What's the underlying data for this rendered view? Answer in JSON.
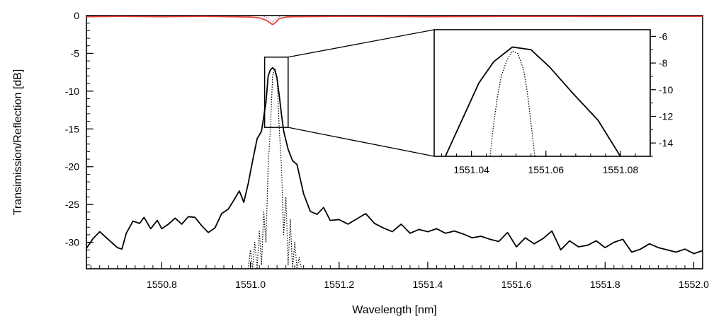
{
  "chart_data": [
    {
      "type": "line",
      "xlabel": "Wavelength [nm]",
      "ylabel": "Transimission/Reflection [dB]",
      "xlim": [
        1550.63,
        1552.02
      ],
      "ylim": [
        -33.5,
        0
      ],
      "xticks": [
        1550.8,
        1551.0,
        1551.2,
        1551.4,
        1551.6,
        1551.8,
        1552.0
      ],
      "xtick_labels": [
        "1550.8",
        "1551.0",
        "1551.2",
        "1551.4",
        "1551.6",
        "1551.8",
        "1552.0"
      ],
      "yticks": [
        0,
        -5,
        -10,
        -15,
        -20,
        -25,
        -30
      ],
      "ytick_labels": [
        "0",
        "-5",
        "-10",
        "-15",
        "-20",
        "-25",
        "-30"
      ],
      "grid": false,
      "series": [
        {
          "style": "solid-black",
          "color": "#000000",
          "x": [
            1550.63,
            1550.645,
            1550.66,
            1550.675,
            1550.69,
            1550.7,
            1550.71,
            1550.72,
            1550.735,
            1550.75,
            1550.76,
            1550.775,
            1550.79,
            1550.8,
            1550.815,
            1550.83,
            1550.845,
            1550.86,
            1550.875,
            1550.89,
            1550.905,
            1550.92,
            1550.935,
            1550.95,
            1550.965,
            1550.975,
            1550.985,
            1550.995,
            1551.005,
            1551.015,
            1551.025,
            1551.035,
            1551.04,
            1551.045,
            1551.05,
            1551.055,
            1551.06,
            1551.065,
            1551.07,
            1551.075,
            1551.085,
            1551.095,
            1551.105,
            1551.12,
            1551.135,
            1551.15,
            1551.165,
            1551.18,
            1551.2,
            1551.22,
            1551.24,
            1551.26,
            1551.28,
            1551.3,
            1551.32,
            1551.34,
            1551.36,
            1551.38,
            1551.4,
            1551.42,
            1551.44,
            1551.46,
            1551.48,
            1551.5,
            1551.52,
            1551.54,
            1551.56,
            1551.58,
            1551.6,
            1551.62,
            1551.64,
            1551.66,
            1551.68,
            1551.7,
            1551.72,
            1551.74,
            1551.76,
            1551.78,
            1551.8,
            1551.82,
            1551.84,
            1551.86,
            1551.88,
            1551.9,
            1551.92,
            1551.94,
            1551.96,
            1551.98,
            1552.0,
            1552.02
          ],
          "y": [
            -30.8,
            -29.5,
            -28.6,
            -29.4,
            -30.2,
            -30.7,
            -30.9,
            -28.8,
            -27.2,
            -27.5,
            -26.7,
            -28.2,
            -27.1,
            -28.2,
            -27.6,
            -26.8,
            -27.6,
            -26.6,
            -26.7,
            -27.8,
            -28.7,
            -28.1,
            -26.2,
            -25.6,
            -24.2,
            -23.2,
            -24.7,
            -22.2,
            -19.2,
            -16.3,
            -15.3,
            -11.5,
            -8.0,
            -7.2,
            -6.9,
            -7.2,
            -8.3,
            -10.6,
            -13.1,
            -15.3,
            -17.7,
            -19.2,
            -19.7,
            -23.6,
            -25.9,
            -26.3,
            -25.4,
            -27.1,
            -27.0,
            -27.6,
            -26.9,
            -26.2,
            -27.5,
            -28.1,
            -28.6,
            -27.6,
            -28.8,
            -28.3,
            -28.6,
            -28.2,
            -28.8,
            -28.5,
            -28.9,
            -29.4,
            -29.2,
            -29.6,
            -29.9,
            -28.7,
            -30.6,
            -29.4,
            -30.2,
            -29.5,
            -28.5,
            -31.0,
            -29.8,
            -30.6,
            -30.4,
            -29.8,
            -30.7,
            -30.0,
            -29.6,
            -31.3,
            -30.9,
            -30.2,
            -30.7,
            -31.0,
            -31.3,
            -30.9,
            -31.5,
            -31.1
          ]
        },
        {
          "style": "dotted-black",
          "color": "#000000",
          "x": [
            1550.995,
            1551.0,
            1551.005,
            1551.01,
            1551.015,
            1551.02,
            1551.025,
            1551.03,
            1551.035,
            1551.04,
            1551.045,
            1551.05,
            1551.055,
            1551.06,
            1551.065,
            1551.07,
            1551.075,
            1551.08,
            1551.085,
            1551.09,
            1551.095,
            1551.1,
            1551.105,
            1551.11,
            1551.115
          ],
          "y": [
            -33.5,
            -31.0,
            -33.5,
            -30.0,
            -33.5,
            -28.5,
            -33.0,
            -26.0,
            -30.0,
            -20.0,
            -15.0,
            -8.0,
            -7.0,
            -8.0,
            -15.0,
            -20.0,
            -29.0,
            -24.0,
            -33.0,
            -27.0,
            -33.5,
            -30.0,
            -33.5,
            -32.0,
            -33.5
          ]
        },
        {
          "style": "solid-red",
          "color": "#e8413a",
          "x": [
            1550.63,
            1550.7,
            1550.8,
            1550.9,
            1550.95,
            1551.0,
            1551.02,
            1551.035,
            1551.045,
            1551.05,
            1551.055,
            1551.06,
            1551.065,
            1551.08,
            1551.1,
            1551.2,
            1551.4,
            1551.6,
            1551.8,
            1552.02
          ],
          "y": [
            -0.15,
            -0.1,
            -0.15,
            -0.1,
            -0.15,
            -0.2,
            -0.3,
            -0.6,
            -1.0,
            -1.2,
            -1.0,
            -0.7,
            -0.4,
            -0.2,
            -0.15,
            -0.1,
            -0.15,
            -0.1,
            -0.12,
            -0.1
          ]
        },
        {
          "style": "dotted-gray",
          "color": "#8a8a8a",
          "x": [
            1551.03,
            1551.04,
            1551.045,
            1551.05,
            1551.055,
            1551.06,
            1551.065,
            1551.07
          ],
          "y": [
            -0.1,
            -0.3,
            -0.6,
            -0.9,
            -0.6,
            -0.3,
            -0.15,
            -0.1
          ]
        }
      ],
      "highlight_box": {
        "x": [
          1551.032,
          1551.085
        ],
        "y": [
          -14.8,
          -5.5
        ]
      }
    },
    {
      "type": "line",
      "role": "inset-zoom",
      "xlim": [
        1551.03,
        1551.088
      ],
      "ylim": [
        -15,
        -5.5
      ],
      "xticks": [
        1551.04,
        1551.06,
        1551.08
      ],
      "xtick_labels": [
        "1551.04",
        "1551.06",
        "1551.08"
      ],
      "yticks": [
        -6,
        -8,
        -10,
        -12,
        -14
      ],
      "ytick_labels": [
        "-6",
        "-8",
        "-10",
        "-12",
        "-14"
      ],
      "series": [
        {
          "style": "solid-black",
          "color": "#000000",
          "x": [
            1551.033,
            1551.042,
            1551.046,
            1551.051,
            1551.056,
            1551.061,
            1551.067,
            1551.074,
            1551.08
          ],
          "y": [
            -15.0,
            -9.5,
            -7.9,
            -6.8,
            -7.0,
            -8.3,
            -10.2,
            -12.3,
            -15.0
          ]
        },
        {
          "style": "dotted-black",
          "color": "#000000",
          "x": [
            1551.045,
            1551.046,
            1551.047,
            1551.048,
            1551.0495,
            1551.051,
            1551.0525,
            1551.054,
            1551.055,
            1551.056,
            1551.057
          ],
          "y": [
            -15.0,
            -12.5,
            -10.5,
            -9.0,
            -7.8,
            -7.1,
            -7.3,
            -8.5,
            -10.2,
            -12.5,
            -15.0
          ]
        }
      ]
    }
  ]
}
